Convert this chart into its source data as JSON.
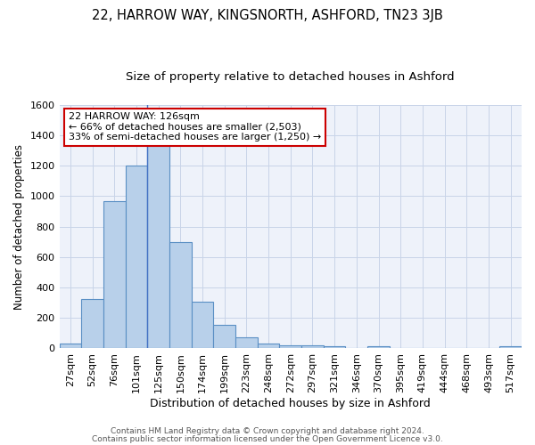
{
  "title1": "22, HARROW WAY, KINGSNORTH, ASHFORD, TN23 3JB",
  "title2": "Size of property relative to detached houses in Ashford",
  "xlabel": "Distribution of detached houses by size in Ashford",
  "ylabel": "Number of detached properties",
  "footer1": "Contains HM Land Registry data © Crown copyright and database right 2024.",
  "footer2": "Contains public sector information licensed under the Open Government Licence v3.0.",
  "annotation_line1": "22 HARROW WAY: 126sqm",
  "annotation_line2": "← 66% of detached houses are smaller (2,503)",
  "annotation_line3": "33% of semi-detached houses are larger (1,250) →",
  "categories": [
    "27sqm",
    "52sqm",
    "76sqm",
    "101sqm",
    "125sqm",
    "150sqm",
    "174sqm",
    "199sqm",
    "223sqm",
    "248sqm",
    "272sqm",
    "297sqm",
    "321sqm",
    "346sqm",
    "370sqm",
    "395sqm",
    "419sqm",
    "444sqm",
    "468sqm",
    "493sqm",
    "517sqm"
  ],
  "values": [
    30,
    325,
    970,
    1200,
    1350,
    700,
    305,
    155,
    70,
    30,
    22,
    18,
    15,
    0,
    13,
    0,
    0,
    0,
    0,
    0,
    13
  ],
  "bar_color": "#b8d0ea",
  "bar_edge_color": "#5a8fc4",
  "vline_x_index": 4,
  "vline_color": "#4472c4",
  "ylim": [
    0,
    1600
  ],
  "yticks": [
    0,
    200,
    400,
    600,
    800,
    1000,
    1200,
    1400,
    1600
  ],
  "grid_color": "#c8d4e8",
  "bg_color": "#eef2fa",
  "annotation_box_color": "#cc0000",
  "title1_fontsize": 10.5,
  "title2_fontsize": 9.5,
  "xlabel_fontsize": 9,
  "ylabel_fontsize": 8.5,
  "tick_fontsize": 8,
  "footer_fontsize": 6.5
}
